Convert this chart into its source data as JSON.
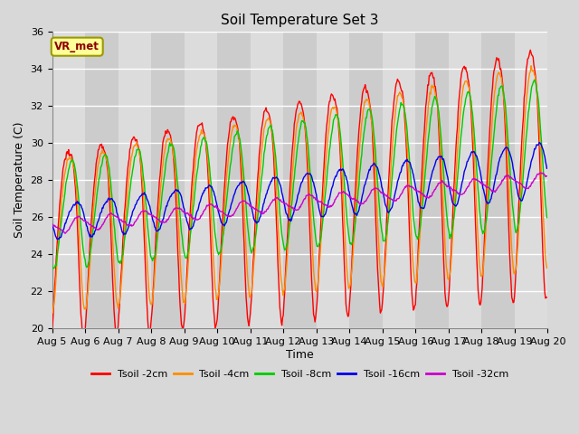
{
  "title": "Soil Temperature Set 3",
  "xlabel": "Time",
  "ylabel": "Soil Temperature (C)",
  "ylim": [
    20,
    36
  ],
  "yticks": [
    20,
    22,
    24,
    26,
    28,
    30,
    32,
    34,
    36
  ],
  "xtick_labels": [
    "Aug 5",
    "Aug 6",
    "Aug 7",
    "Aug 8",
    "Aug 9",
    "Aug 10",
    "Aug 11",
    "Aug 12",
    "Aug 13",
    "Aug 14",
    "Aug 15",
    "Aug 16",
    "Aug 17",
    "Aug 18",
    "Aug 19",
    "Aug 20"
  ],
  "legend_label": "VR_met",
  "series": [
    {
      "label": "Tsoil -2cm",
      "color": "#FF0000"
    },
    {
      "label": "Tsoil -4cm",
      "color": "#FF8C00"
    },
    {
      "label": "Tsoil -8cm",
      "color": "#00CC00"
    },
    {
      "label": "Tsoil -16cm",
      "color": "#0000EE"
    },
    {
      "label": "Tsoil -32cm",
      "color": "#CC00CC"
    }
  ],
  "bg_color": "#DCDCDC",
  "grid_color": "#FFFFFF",
  "fig_bg": "#D8D8D8",
  "title_fontsize": 11,
  "tick_fontsize": 8,
  "label_fontsize": 9
}
